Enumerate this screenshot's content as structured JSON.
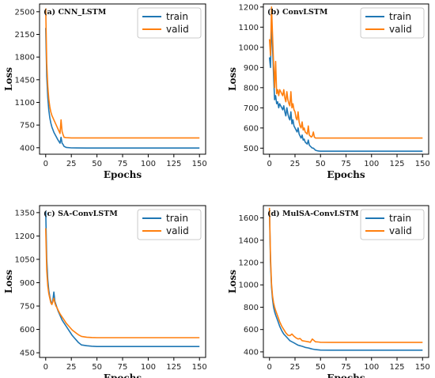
{
  "colors": {
    "train": "#1f77b4",
    "valid": "#ff7f0e",
    "axis": "#000000",
    "legend_border": "#bbbbbb"
  },
  "chart_data": [
    {
      "type": "line",
      "title": "(a) CNN_LSTM",
      "xlabel": "Epochs",
      "ylabel": "Loss",
      "xlim": [
        -6,
        156
      ],
      "ylim": [
        300,
        2620
      ],
      "xticks": [
        0,
        25,
        50,
        75,
        100,
        125,
        150
      ],
      "yticks": [
        400,
        750,
        1100,
        1450,
        1800,
        2150,
        2500
      ],
      "legend": "top-right",
      "grid": false,
      "series": [
        {
          "name": "train",
          "x": [
            0,
            1,
            2,
            3,
            4,
            5,
            6,
            8,
            10,
            12,
            14,
            15,
            16,
            17,
            18,
            20,
            25,
            30,
            40,
            50,
            75,
            100,
            125,
            150
          ],
          "y": [
            2250,
            1500,
            1180,
            980,
            860,
            780,
            720,
            640,
            580,
            520,
            470,
            560,
            470,
            450,
            420,
            405,
            398,
            396,
            395,
            395,
            395,
            395,
            395,
            395
          ]
        },
        {
          "name": "valid",
          "x": [
            0,
            1,
            2,
            3,
            4,
            5,
            6,
            8,
            10,
            12,
            14,
            15,
            16,
            17,
            18,
            20,
            25,
            30,
            40,
            50,
            75,
            100,
            125,
            150
          ],
          "y": [
            2550,
            1700,
            1350,
            1150,
            1030,
            950,
            900,
            830,
            760,
            690,
            620,
            830,
            650,
            600,
            560,
            555,
            552,
            552,
            552,
            552,
            552,
            552,
            552,
            552
          ]
        }
      ]
    },
    {
      "type": "line",
      "title": "(b) ConvLSTM",
      "xlabel": "Epochs",
      "ylabel": "Loss",
      "xlim": [
        -6,
        156
      ],
      "ylim": [
        470,
        1215
      ],
      "xticks": [
        0,
        25,
        50,
        75,
        100,
        125,
        150
      ],
      "yticks": [
        500,
        600,
        700,
        800,
        900,
        1000,
        1100,
        1200
      ],
      "legend": "top-right",
      "grid": false,
      "series": [
        {
          "name": "train",
          "x": [
            0,
            1,
            2,
            3,
            4,
            5,
            6,
            7,
            8,
            9,
            10,
            11,
            12,
            13,
            14,
            15,
            16,
            17,
            18,
            19,
            20,
            21,
            22,
            23,
            24,
            25,
            26,
            27,
            28,
            29,
            30,
            31,
            32,
            33,
            34,
            35,
            36,
            37,
            38,
            39,
            40,
            41,
            42,
            43,
            44,
            45,
            46,
            47,
            48,
            50,
            60,
            75,
            100,
            125,
            150
          ],
          "y": [
            950,
            900,
            1130,
            1000,
            860,
            740,
            760,
            720,
            730,
            700,
            720,
            710,
            700,
            690,
            710,
            680,
            660,
            700,
            670,
            650,
            640,
            680,
            620,
            640,
            610,
            600,
            590,
            580,
            600,
            570,
            560,
            550,
            565,
            540,
            545,
            530,
            525,
            520,
            540,
            515,
            510,
            505,
            500,
            500,
            495,
            490,
            488,
            487,
            486,
            485,
            485,
            485,
            485,
            485,
            485
          ]
        },
        {
          "name": "valid",
          "x": [
            0,
            1,
            2,
            3,
            4,
            5,
            6,
            7,
            8,
            9,
            10,
            11,
            12,
            13,
            14,
            15,
            16,
            17,
            18,
            19,
            20,
            21,
            22,
            23,
            24,
            25,
            26,
            27,
            28,
            29,
            30,
            31,
            32,
            33,
            34,
            35,
            36,
            37,
            38,
            39,
            40,
            41,
            42,
            43,
            44,
            45,
            46,
            47,
            48,
            50,
            60,
            75,
            100,
            125,
            150
          ],
          "y": [
            1040,
            960,
            1200,
            1060,
            920,
            800,
            930,
            770,
            790,
            760,
            790,
            780,
            770,
            760,
            790,
            750,
            730,
            780,
            740,
            720,
            710,
            780,
            700,
            720,
            690,
            680,
            650,
            640,
            680,
            630,
            610,
            600,
            630,
            590,
            600,
            580,
            575,
            570,
            610,
            565,
            560,
            555,
            560,
            580,
            555,
            550,
            550,
            550,
            550,
            550,
            550,
            550,
            550,
            550,
            550
          ]
        }
      ]
    },
    {
      "type": "line",
      "title": "(c) SA-ConvLSTM",
      "xlabel": "Epochs",
      "ylabel": "Loss",
      "xlim": [
        -6,
        156
      ],
      "ylim": [
        420,
        1395
      ],
      "xticks": [
        0,
        25,
        50,
        75,
        100,
        125,
        150
      ],
      "yticks": [
        450,
        600,
        750,
        900,
        1050,
        1200,
        1350
      ],
      "legend": "top-right",
      "grid": false,
      "series": [
        {
          "name": "train",
          "x": [
            0,
            1,
            2,
            3,
            4,
            5,
            6,
            7,
            8,
            9,
            10,
            11,
            12,
            14,
            16,
            18,
            20,
            22,
            24,
            26,
            28,
            30,
            32,
            35,
            40,
            45,
            50,
            60,
            75,
            100,
            125,
            150
          ],
          "y": [
            1360,
            1050,
            920,
            850,
            810,
            780,
            760,
            790,
            840,
            780,
            760,
            740,
            720,
            690,
            660,
            640,
            620,
            600,
            580,
            560,
            545,
            530,
            515,
            500,
            495,
            492,
            490,
            490,
            490,
            490,
            490,
            490
          ]
        },
        {
          "name": "valid",
          "x": [
            0,
            1,
            2,
            3,
            4,
            5,
            6,
            7,
            8,
            9,
            10,
            11,
            12,
            14,
            16,
            18,
            20,
            22,
            24,
            26,
            28,
            30,
            32,
            35,
            40,
            45,
            50,
            60,
            75,
            100,
            125,
            150
          ],
          "y": [
            1250,
            980,
            880,
            830,
            800,
            770,
            760,
            780,
            800,
            770,
            750,
            740,
            725,
            700,
            680,
            660,
            640,
            625,
            610,
            595,
            585,
            575,
            565,
            555,
            550,
            548,
            547,
            547,
            547,
            547,
            547,
            547
          ]
        }
      ]
    },
    {
      "type": "line",
      "title": "(d) MulSA-ConvLSTM",
      "xlabel": "Epochs",
      "ylabel": "Loss",
      "xlim": [
        -6,
        156
      ],
      "ylim": [
        350,
        1710
      ],
      "xticks": [
        0,
        25,
        50,
        75,
        100,
        125,
        150
      ],
      "yticks": [
        400,
        600,
        800,
        1000,
        1200,
        1400,
        1600
      ],
      "legend": "top-right",
      "grid": false,
      "series": [
        {
          "name": "train",
          "x": [
            0,
            1,
            2,
            3,
            4,
            5,
            6,
            8,
            10,
            12,
            14,
            16,
            18,
            20,
            22,
            24,
            26,
            28,
            30,
            32,
            35,
            38,
            40,
            42,
            45,
            48,
            50,
            60,
            75,
            100,
            125,
            150
          ],
          "y": [
            1680,
            1200,
            980,
            870,
            800,
            760,
            730,
            680,
            630,
            590,
            560,
            540,
            520,
            500,
            490,
            480,
            470,
            460,
            455,
            450,
            440,
            435,
            430,
            425,
            420,
            418,
            416,
            415,
            415,
            415,
            415,
            415
          ]
        },
        {
          "name": "valid",
          "x": [
            0,
            1,
            2,
            3,
            4,
            5,
            6,
            8,
            10,
            12,
            14,
            16,
            18,
            20,
            22,
            24,
            26,
            28,
            30,
            32,
            35,
            38,
            40,
            42,
            45,
            48,
            50,
            60,
            75,
            100,
            125,
            150
          ],
          "y": [
            1690,
            1250,
            1010,
            900,
            840,
            800,
            770,
            720,
            670,
            630,
            600,
            570,
            550,
            545,
            560,
            540,
            525,
            515,
            520,
            500,
            495,
            490,
            485,
            515,
            490,
            488,
            486,
            485,
            485,
            485,
            485,
            485
          ]
        }
      ]
    }
  ]
}
